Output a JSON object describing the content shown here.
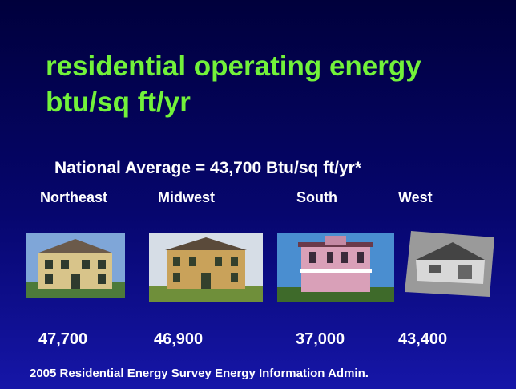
{
  "title": {
    "lines": [
      "residential operating energy",
      "btu/sq ft/yr"
    ]
  },
  "national_average": "National Average =  43,700 Btu/sq ft/yr*",
  "regions": [
    {
      "name": "Northeast",
      "value": "47,700"
    },
    {
      "name": "Midwest",
      "value": "46,900"
    },
    {
      "name": "South",
      "value": "37,000"
    },
    {
      "name": "West",
      "value": "43,400"
    }
  ],
  "footer": "2005 Residential Energy Survey Energy Information Admin."
}
